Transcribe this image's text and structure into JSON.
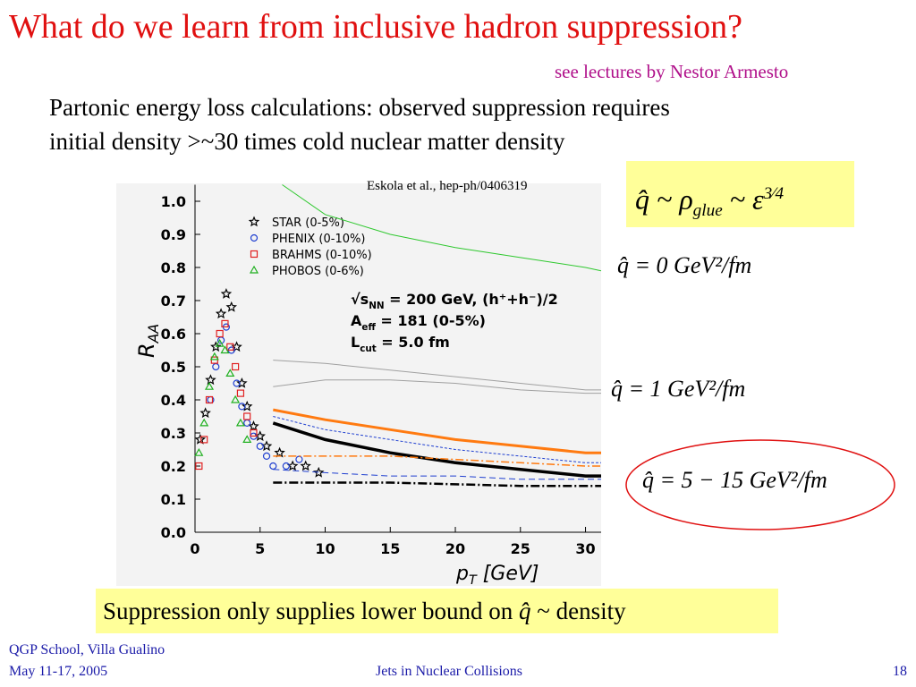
{
  "title": "What do we learn from inclusive hadron suppression?",
  "subtitle": "see lectures by Nestor Armesto",
  "body": [
    "Partonic energy loss calculations: observed suppression requires",
    "initial density >~30 times cold nuclear matter density"
  ],
  "citation": "Eskola et al., hep-ph/0406319",
  "formulas": [
    [
      "q̂ ~ ρ",
      "glue",
      " ~ ε",
      "3⁄4"
    ],
    [
      "q̂ = 0 GeV²/fm"
    ],
    [
      "q̂ = 1 GeV²/fm"
    ],
    [
      "q̂ = 5 − 15 GeV²/fm"
    ]
  ],
  "conclusion": [
    "Suppression only supplies lower bound on ",
    "q̂",
    " ~ density"
  ],
  "footer": {
    "left": [
      "QGP School, Villa Gualino",
      "May 11-17, 2005"
    ],
    "center": "Jets in Nuclear Collisions",
    "page": "18"
  },
  "chart_data": {
    "type": "line",
    "xlabel": [
      "p",
      "T",
      " [GeV]"
    ],
    "ylabel": [
      "R",
      "AA"
    ],
    "xlim": [
      0,
      31.2
    ],
    "ylim": [
      0,
      1.05
    ],
    "xticks": [
      0,
      5,
      10,
      15,
      20,
      25,
      30
    ],
    "yticks": [
      {
        "value": 0,
        "label": "0.0"
      },
      {
        "value": 0.1,
        "label": "0.1"
      },
      {
        "value": 0.2,
        "label": "0.2"
      },
      {
        "value": 0.3,
        "label": "0.3"
      },
      {
        "value": 0.4,
        "label": "0.4"
      },
      {
        "value": 0.5,
        "label": "0.5"
      },
      {
        "value": 0.6,
        "label": "0.6"
      },
      {
        "value": 0.7,
        "label": "0.7"
      },
      {
        "value": 0.8,
        "label": "0.8"
      },
      {
        "value": 0.9,
        "label": "0.9"
      },
      {
        "value": 1.0,
        "label": "1.0"
      }
    ],
    "annotations": [
      [
        "√s",
        "NN",
        " = 200 GeV, (h⁺+h⁻)/2"
      ],
      [
        "A",
        "eff",
        " = 181 (0-5%)"
      ],
      [
        "L",
        "cut",
        " = 5.0 fm"
      ]
    ],
    "series": [
      {
        "name": "STAR (0-5%)",
        "color": "#000000",
        "marker": "star",
        "x": [
          0.4,
          0.8,
          1.2,
          1.6,
          2.0,
          2.4,
          2.8,
          3.2,
          3.6,
          4.0,
          4.5,
          5.0,
          5.5,
          6.5,
          7.5,
          8.5,
          9.5
        ],
        "values": [
          0.28,
          0.36,
          0.46,
          0.56,
          0.66,
          0.72,
          0.68,
          0.56,
          0.45,
          0.38,
          0.32,
          0.29,
          0.26,
          0.24,
          0.2,
          0.2,
          0.18
        ]
      },
      {
        "name": "PHENIX (0-10%)",
        "color": "#1f3fd0",
        "marker": "circle",
        "x": [
          1.2,
          1.6,
          2.0,
          2.4,
          2.8,
          3.2,
          3.6,
          4.0,
          4.5,
          5.0,
          5.5,
          6.0,
          7.0,
          8.0
        ],
        "values": [
          0.4,
          0.5,
          0.58,
          0.62,
          0.55,
          0.45,
          0.38,
          0.33,
          0.29,
          0.26,
          0.23,
          0.2,
          0.2,
          0.22
        ]
      },
      {
        "name": "BRAHMS (0-10%)",
        "color": "#e02020",
        "marker": "square",
        "x": [
          0.3,
          0.7,
          1.1,
          1.5,
          1.9,
          2.3,
          2.7,
          3.1,
          3.5,
          4.0,
          4.5
        ],
        "values": [
          0.2,
          0.28,
          0.4,
          0.52,
          0.6,
          0.63,
          0.56,
          0.5,
          0.42,
          0.35,
          0.3
        ]
      },
      {
        "name": "PHOBOS (0-6%)",
        "color": "#20b020",
        "marker": "triangle",
        "x": [
          0.3,
          0.7,
          1.1,
          1.5,
          1.9,
          2.3,
          2.7,
          3.1,
          3.5,
          4.0
        ],
        "values": [
          0.24,
          0.33,
          0.44,
          0.53,
          0.57,
          0.55,
          0.48,
          0.4,
          0.33,
          0.28
        ]
      },
      {
        "color": "#2ec82e",
        "width": 1,
        "x": [
          6.7,
          10,
          15,
          20,
          25,
          30,
          31.2
        ],
        "values": [
          1.05,
          0.96,
          0.9,
          0.86,
          0.83,
          0.8,
          0.79
        ]
      },
      {
        "color": "#a0a0a0",
        "width": 1,
        "x": [
          6,
          10,
          15,
          20,
          25,
          30,
          31.2
        ],
        "values": [
          0.52,
          0.51,
          0.49,
          0.47,
          0.45,
          0.43,
          0.43
        ]
      },
      {
        "color": "#a0a0a0",
        "width": 1,
        "x": [
          6,
          10,
          15,
          20,
          25,
          30,
          31.2
        ],
        "values": [
          0.44,
          0.46,
          0.46,
          0.45,
          0.43,
          0.42,
          0.42
        ]
      },
      {
        "color": "#ff7a10",
        "width": 3,
        "x": [
          6,
          10,
          15,
          20,
          25,
          30,
          31.2
        ],
        "values": [
          0.37,
          0.34,
          0.31,
          0.28,
          0.26,
          0.24,
          0.24
        ]
      },
      {
        "color": "#1f3fd0",
        "width": 1,
        "dash": "3,2",
        "x": [
          6,
          10,
          15,
          20,
          25,
          30,
          31.2
        ],
        "values": [
          0.35,
          0.31,
          0.28,
          0.25,
          0.23,
          0.21,
          0.21
        ]
      },
      {
        "color": "#000000",
        "width": 3.5,
        "x": [
          6,
          10,
          15,
          20,
          25,
          30,
          31.2
        ],
        "values": [
          0.33,
          0.28,
          0.24,
          0.21,
          0.19,
          0.17,
          0.17
        ]
      },
      {
        "color": "#ff7a10",
        "width": 1.5,
        "dash": "9,3,2,3",
        "x": [
          6,
          10,
          15,
          20,
          25,
          30,
          31.2
        ],
        "values": [
          0.23,
          0.23,
          0.23,
          0.22,
          0.21,
          0.2,
          0.2
        ]
      },
      {
        "color": "#1f3fd0",
        "width": 1,
        "dash": "7,4",
        "x": [
          6,
          10,
          15,
          20,
          25,
          30,
          31.2
        ],
        "values": [
          0.19,
          0.18,
          0.17,
          0.17,
          0.16,
          0.16,
          0.16
        ]
      },
      {
        "color": "#000000",
        "width": 2.5,
        "dash": "10,3,2,3",
        "x": [
          6,
          10,
          15,
          20,
          25,
          30,
          31.2
        ],
        "values": [
          0.15,
          0.15,
          0.15,
          0.145,
          0.14,
          0.14,
          0.14
        ]
      }
    ]
  }
}
